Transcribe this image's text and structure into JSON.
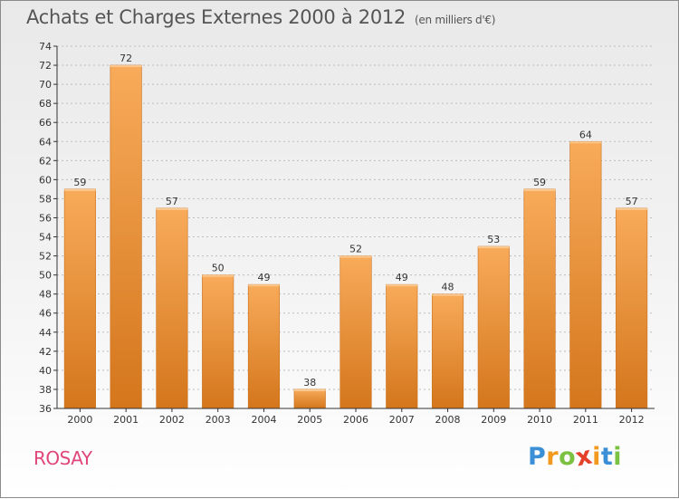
{
  "header": {
    "title": "Achats et Charges Externes 2000 à 2012",
    "subtitle": "(en milliers d'€)"
  },
  "footer": {
    "city": "ROSAY",
    "logo": {
      "letters": [
        "P",
        "r",
        "o",
        "x",
        "i",
        "t",
        "i"
      ],
      "colors": [
        "#3a8fd6",
        "#f29a1f",
        "#7cc242",
        "#e4412b",
        "#f29a1f",
        "#3a8fd6",
        "#7cc242"
      ]
    }
  },
  "colors": {
    "bar_light": "#f8ab5a",
    "bar_dark": "#d4761c",
    "axis": "#333333",
    "grid": "#bdbdbd"
  },
  "chart_data": {
    "type": "bar",
    "title": "Achats et Charges Externes 2000 à 2012",
    "subtitle": "(en milliers d'€)",
    "categories": [
      "2000",
      "2001",
      "2002",
      "2003",
      "2004",
      "2005",
      "2006",
      "2007",
      "2008",
      "2009",
      "2010",
      "2011",
      "2012"
    ],
    "values": [
      59,
      72,
      57,
      50,
      49,
      38,
      52,
      49,
      48,
      53,
      59,
      64,
      57
    ],
    "ylim": [
      36,
      74
    ],
    "yticks": [
      36,
      38,
      40,
      42,
      44,
      46,
      48,
      50,
      52,
      54,
      56,
      58,
      60,
      62,
      64,
      66,
      68,
      70,
      72,
      74
    ],
    "grid": true,
    "data_labels": true
  }
}
